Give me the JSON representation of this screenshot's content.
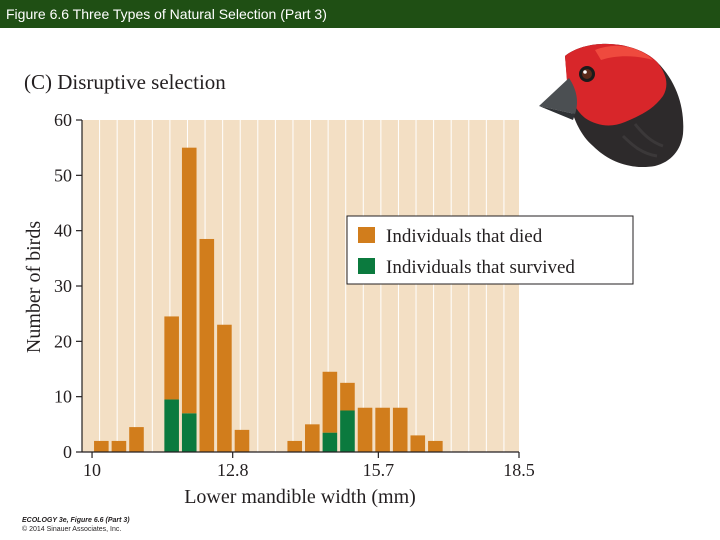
{
  "slide": {
    "title": "Figure 6.6  Three Types of Natural Selection (Part 3)"
  },
  "figure": {
    "panel_title": "(C)  Disruptive selection",
    "credit_line1": "ECOLOGY 3e, Figure 6.6 (Part 3)",
    "credit_line2": "© 2014 Sinauer Associates, Inc.",
    "bird_icon": "finch-head-illustration"
  },
  "colors": {
    "title_bar": "#1f4f14",
    "plot_background": "#f3dfc4",
    "died": "#d17d1c",
    "survived": "#0b7a3e",
    "grid": "#ffffff"
  },
  "chart_data": {
    "type": "bar",
    "stacked": true,
    "title": "(C)  Disruptive selection",
    "xlabel": "Lower mandible width (mm)",
    "ylabel": "Number of birds",
    "xlim": [
      9.8,
      18.5
    ],
    "ylim": [
      0,
      60
    ],
    "xticks": [
      "10",
      "12.8",
      "15.7",
      "18.5"
    ],
    "xtick_values": [
      10,
      12.8,
      15.7,
      18.5
    ],
    "yticks": [
      0,
      10,
      20,
      30,
      40,
      50,
      60
    ],
    "bin_width": 0.35,
    "bin_starts": [
      10.0,
      10.35,
      10.7,
      11.4,
      11.75,
      12.1,
      12.45,
      12.8,
      13.85,
      14.2,
      14.55,
      14.9,
      15.25,
      15.6,
      15.95,
      16.3,
      16.65
    ],
    "grid": true,
    "legend_position": "upper-right",
    "series": [
      {
        "name": "Individuals that died",
        "values": [
          2,
          2,
          4.5,
          15,
          48,
          38.5,
          23,
          4,
          2,
          5,
          11,
          5,
          8,
          8,
          8,
          3,
          2
        ]
      },
      {
        "name": "Individuals that survived",
        "values": [
          0,
          0,
          0,
          9.5,
          7,
          0,
          0,
          0,
          0,
          0,
          3.5,
          7.5,
          0,
          0,
          0,
          0,
          0
        ]
      }
    ]
  }
}
